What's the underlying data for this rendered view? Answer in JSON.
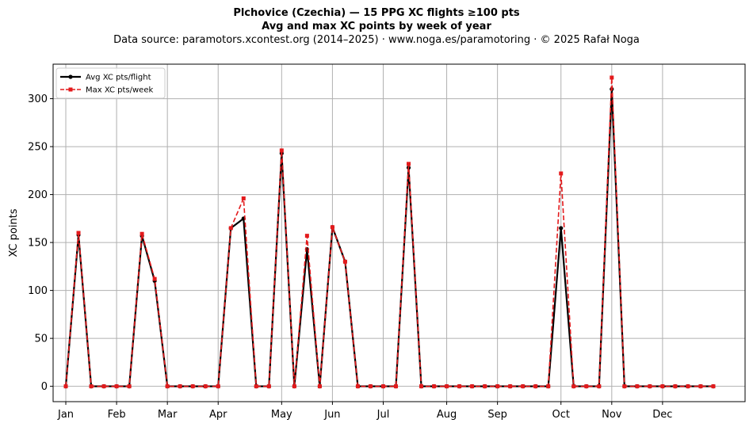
{
  "header": {
    "title": "Plchovice (Czechia)  —  15 PPG XC flights ≥100 pts",
    "subtitle": "Avg and max XC points by week of year",
    "source": "Data source: paramotors.xcontest.org (2014–2025)  ·  www.noga.es/paramotoring  ·  © 2025 Rafał Noga"
  },
  "chart_data": {
    "type": "line",
    "title": "Plchovice (Czechia)  —  15 PPG XC flights ≥100 pts",
    "subtitle": "Avg and max XC points by week of year",
    "xlabel": "",
    "ylabel": "XC points",
    "x_ticks": [
      "Jan",
      "Feb",
      "Mar",
      "Apr",
      "May",
      "Jun",
      "Jul",
      "Aug",
      "Sep",
      "Oct",
      "Nov",
      "Dec"
    ],
    "x_tick_weeks": [
      1,
      5,
      9,
      13,
      18,
      22,
      26,
      31,
      35,
      40,
      44,
      48
    ],
    "yticks": [
      0,
      50,
      100,
      150,
      200,
      250,
      300
    ],
    "xlim": [
      0,
      54.5
    ],
    "ylim": [
      -16,
      336
    ],
    "grid": true,
    "legend_position": "upper left",
    "x": [
      1,
      2,
      3,
      4,
      5,
      6,
      7,
      8,
      9,
      10,
      11,
      12,
      13,
      14,
      15,
      16,
      17,
      18,
      19,
      20,
      21,
      22,
      23,
      24,
      25,
      26,
      27,
      28,
      29,
      30,
      31,
      32,
      33,
      34,
      35,
      36,
      37,
      38,
      39,
      40,
      41,
      42,
      43,
      44,
      45,
      46,
      47,
      48,
      49,
      50,
      51,
      52
    ],
    "series": [
      {
        "name": "Avg XC pts/flight",
        "color": "#000000",
        "style": "solid",
        "marker": "circle",
        "values": [
          0,
          158,
          0,
          0,
          0,
          0,
          157,
          110,
          0,
          0,
          0,
          0,
          0,
          165,
          175,
          0,
          0,
          243,
          0,
          143,
          0,
          166,
          130,
          0,
          0,
          0,
          0,
          228,
          0,
          0,
          0,
          0,
          0,
          0,
          0,
          0,
          0,
          0,
          0,
          165,
          0,
          0,
          0,
          310,
          0,
          0,
          0,
          0,
          0,
          0,
          0,
          0
        ]
      },
      {
        "name": "Max XC pts/week",
        "color": "#e31a1c",
        "style": "dashed",
        "marker": "square",
        "values": [
          0,
          160,
          0,
          0,
          0,
          0,
          159,
          112,
          0,
          0,
          0,
          0,
          0,
          165,
          196,
          0,
          0,
          246,
          0,
          157,
          0,
          166,
          130,
          0,
          0,
          0,
          0,
          232,
          0,
          0,
          0,
          0,
          0,
          0,
          0,
          0,
          0,
          0,
          0,
          222,
          0,
          0,
          0,
          322,
          0,
          0,
          0,
          0,
          0,
          0,
          0,
          0
        ]
      }
    ]
  }
}
